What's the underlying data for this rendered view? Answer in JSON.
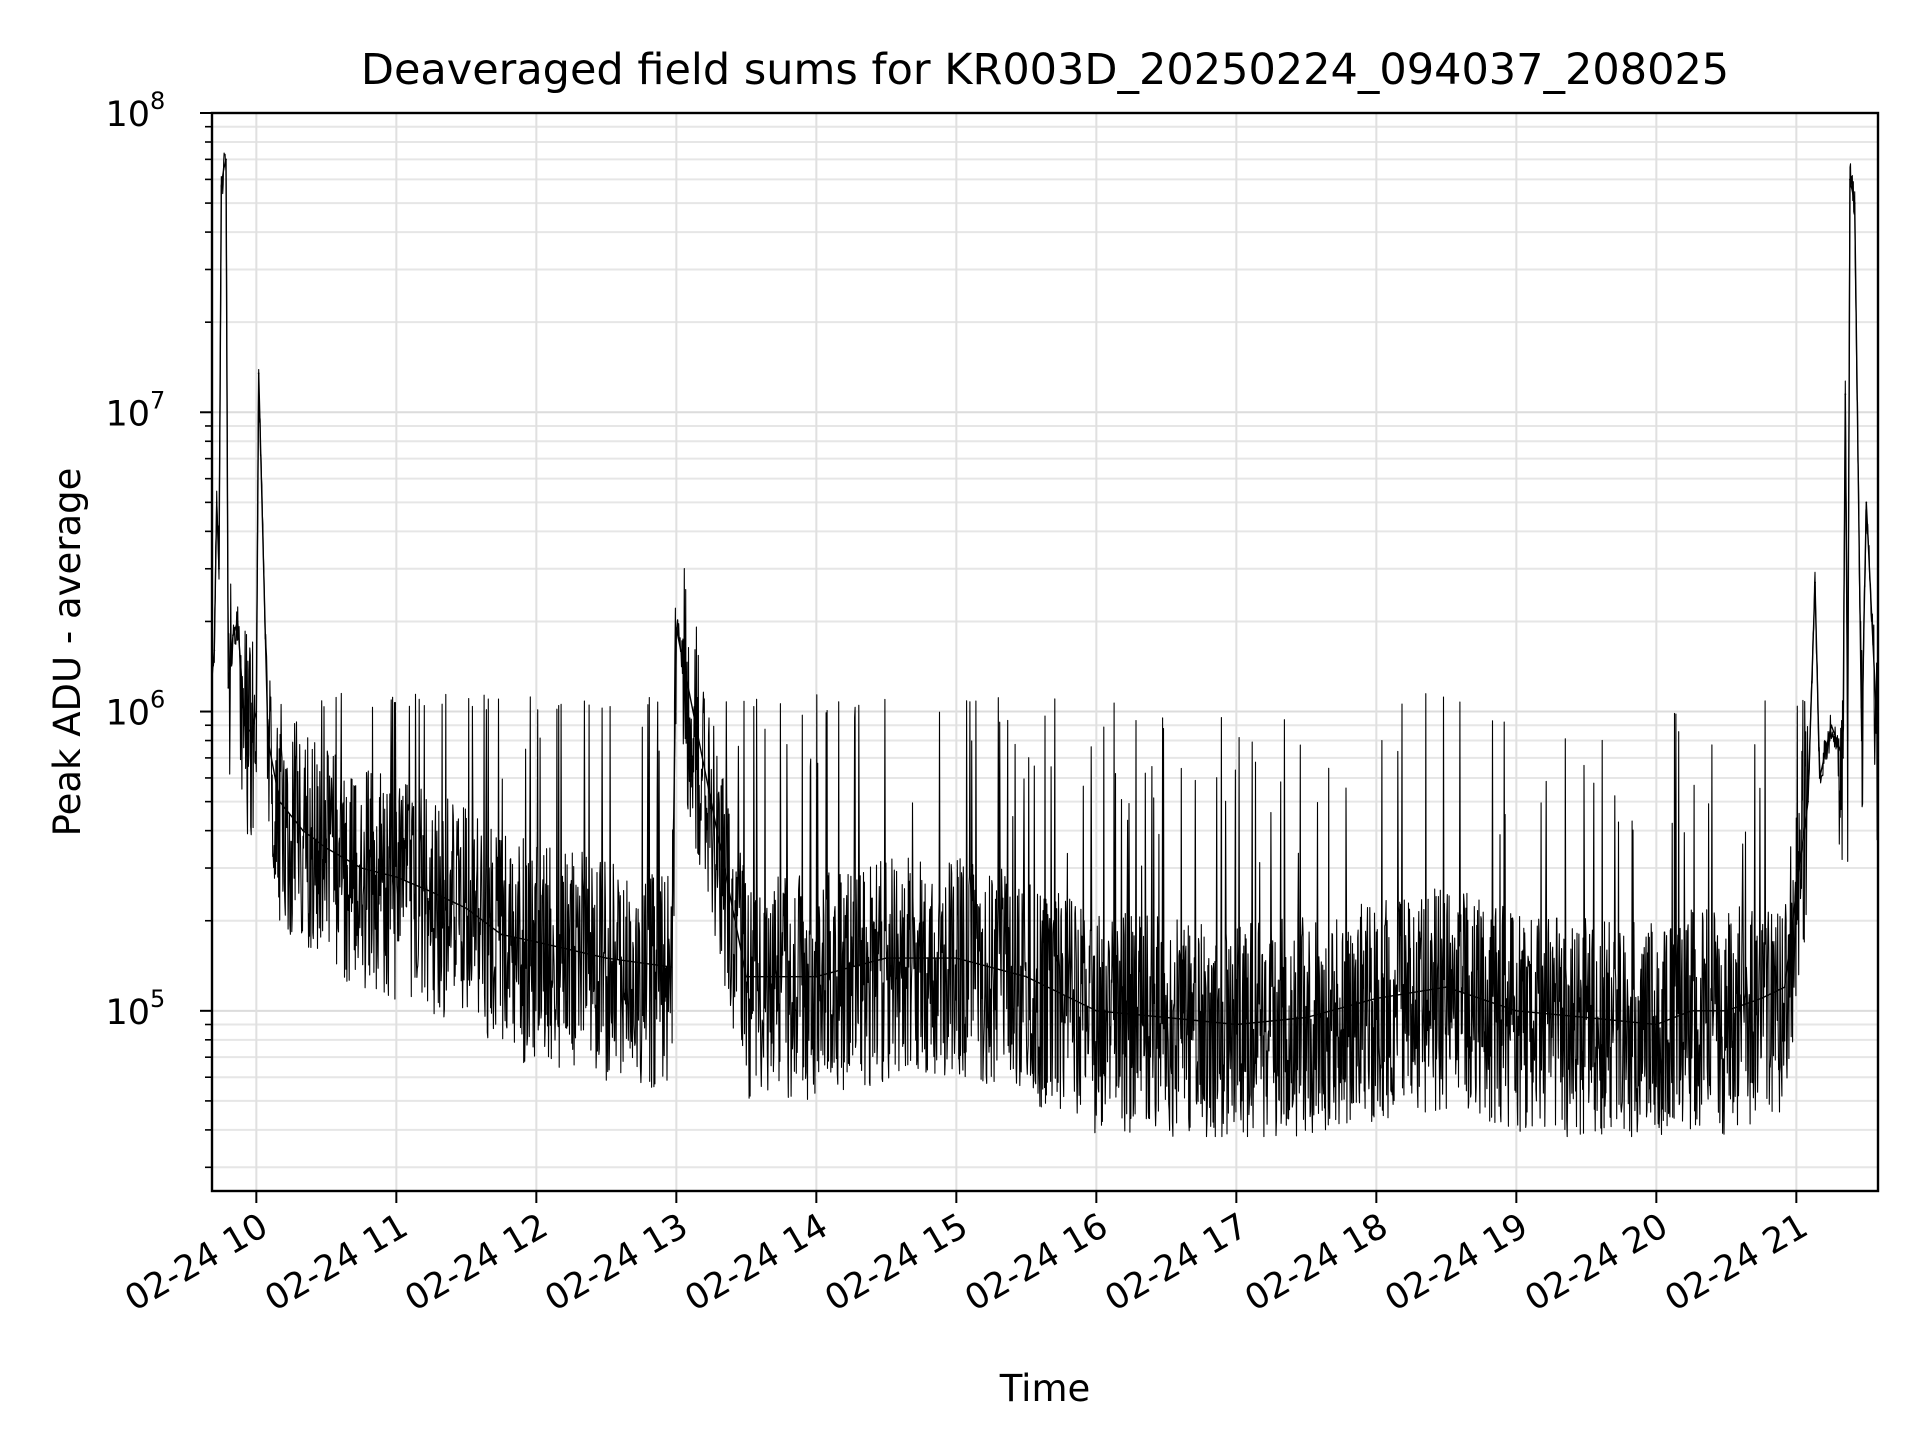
{
  "chart_data": {
    "type": "line",
    "title": "Deaveraged field sums for KR003D_20250224_094037_208025",
    "xlabel": "Time",
    "ylabel": "Peak ADU - average",
    "yscale": "log",
    "ylim": [
      25000,
      100000000
    ],
    "xlim": [
      "02-24 09:41",
      "02-24 21:35"
    ],
    "grid": true,
    "legend": "none",
    "line_color": "#000000",
    "x_ticks": [
      "02-24 10",
      "02-24 11",
      "02-24 12",
      "02-24 13",
      "02-24 14",
      "02-24 15",
      "02-24 16",
      "02-24 17",
      "02-24 18",
      "02-24 19",
      "02-24 20",
      "02-24 21"
    ],
    "y_ticks": [
      {
        "base": "10",
        "exp": "5",
        "value": 100000
      },
      {
        "base": "10",
        "exp": "6",
        "value": 1000000
      },
      {
        "base": "10",
        "exp": "7",
        "value": 10000000
      },
      {
        "base": "10",
        "exp": "8",
        "value": 100000000
      }
    ],
    "series": [
      {
        "x": [
          "02-24 09:41",
          "02-24 09:42",
          "02-24 09:43",
          "02-24 09:44",
          "02-24 09:45",
          "02-24 09:46",
          "02-24 09:47",
          "02-24 09:48",
          "02-24 09:50",
          "02-24 09:52",
          "02-24 09:55",
          "02-24 09:58",
          "02-24 10:00",
          "02-24 10:01",
          "02-24 10:05",
          "02-24 10:10",
          "02-24 10:20",
          "02-24 10:30",
          "02-24 10:45",
          "02-24 11:00",
          "02-24 11:15",
          "02-24 11:30",
          "02-24 11:45",
          "02-24 12:00",
          "02-24 12:30",
          "02-24 12:58",
          "02-24 13:00",
          "02-24 13:30",
          "02-24 14:00",
          "02-24 14:15",
          "02-24 14:30",
          "02-24 15:00",
          "02-24 15:30",
          "02-24 16:00",
          "02-24 16:30",
          "02-24 17:00",
          "02-24 17:30",
          "02-24 18:00",
          "02-24 18:30",
          "02-24 19:00",
          "02-24 19:30",
          "02-24 20:00",
          "02-24 20:15",
          "02-24 20:30",
          "02-24 20:45",
          "02-24 20:55",
          "02-24 21:00",
          "02-24 21:05",
          "02-24 21:08",
          "02-24 21:10",
          "02-24 21:15",
          "02-24 21:20",
          "02-24 21:21",
          "02-24 21:22",
          "02-24 21:23",
          "02-24 21:25",
          "02-24 21:28",
          "02-24 21:30",
          "02-24 21:35"
        ],
        "values": [
          1300000,
          1600000,
          5000000,
          3000000,
          57000000,
          65000000,
          70000000,
          1200000,
          1800000,
          2000000,
          900000,
          850000,
          1000000,
          13500000,
          800000,
          500000,
          400000,
          350000,
          300000,
          280000,
          250000,
          220000,
          180000,
          170000,
          150000,
          140000,
          1900000,
          130000,
          130000,
          140000,
          150000,
          150000,
          130000,
          100000,
          95000,
          90000,
          95000,
          110000,
          120000,
          100000,
          95000,
          90000,
          100000,
          100000,
          110000,
          120000,
          250000,
          500000,
          2700000,
          600000,
          900000,
          700000,
          11500000,
          800000,
          60000000,
          50000000,
          800000,
          5000000,
          750000
        ]
      }
    ]
  }
}
